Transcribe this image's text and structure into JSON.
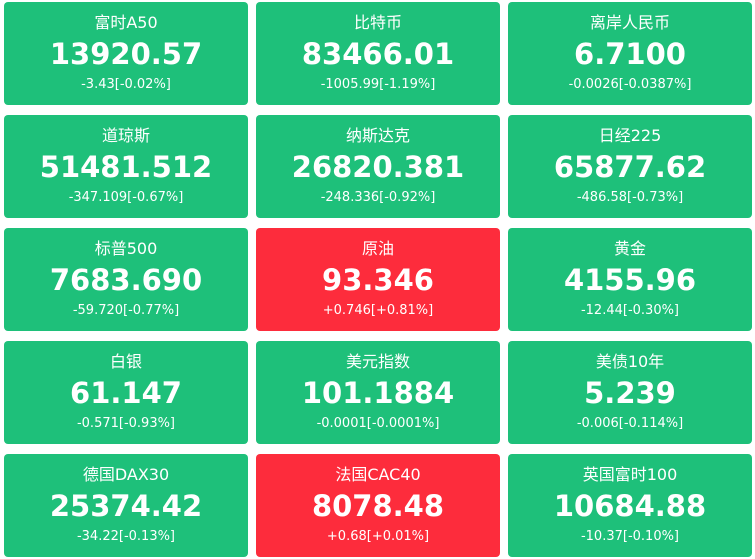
{
  "tiles": [
    {
      "name": "富时A50",
      "price": "13920.57",
      "change": "-3.43[-0.02%]",
      "color": "#1ec07a"
    },
    {
      "name": "比特币",
      "price": "83466.01",
      "change": "-1005.99[-1.19%]",
      "color": "#1ec07a"
    },
    {
      "name": "离岸人民币",
      "price": "6.7100",
      "change": "-0.0026[-0.0387%]",
      "color": "#1ec07a"
    },
    {
      "name": "道琼斯",
      "price": "51481.512",
      "change": "-347.109[-0.67%]",
      "color": "#1ec07a"
    },
    {
      "name": "纳斯达克",
      "price": "26820.381",
      "change": "-248.336[-0.92%]",
      "color": "#1ec07a"
    },
    {
      "name": "日经225",
      "price": "65877.62",
      "change": "-486.58[-0.73%]",
      "color": "#1ec07a"
    },
    {
      "name": "标普500",
      "price": "7683.690",
      "change": "-59.720[-0.77%]",
      "color": "#1ec07a"
    },
    {
      "name": "原油",
      "price": "93.346",
      "change": "+0.746[+0.81%]",
      "color": "#fd2c3c"
    },
    {
      "name": "黄金",
      "price": "4155.96",
      "change": "-12.44[-0.30%]",
      "color": "#1ec07a"
    },
    {
      "name": "白银",
      "price": "61.147",
      "change": "-0.571[-0.93%]",
      "color": "#1ec07a"
    },
    {
      "name": "美元指数",
      "price": "101.1884",
      "change": "-0.0001[-0.0001%]",
      "color": "#1ec07a"
    },
    {
      "name": "美债10年",
      "price": "5.239",
      "change": "-0.006[-0.114%]",
      "color": "#1ec07a"
    },
    {
      "name": "德国DAX30",
      "price": "25374.42",
      "change": "-34.22[-0.13%]",
      "color": "#1ec07a"
    },
    {
      "name": "法国CAC40",
      "price": "8078.48",
      "change": "+0.68[+0.01%]",
      "color": "#fd2c3c"
    },
    {
      "name": "英国富时100",
      "price": "10684.88",
      "change": "-10.37[-0.10%]",
      "color": "#1ec07a"
    }
  ]
}
